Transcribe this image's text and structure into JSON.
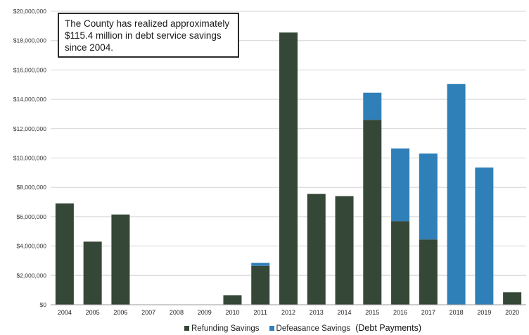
{
  "chart_data": {
    "type": "bar",
    "stacked": true,
    "categories": [
      "2004",
      "2005",
      "2006",
      "2007",
      "2008",
      "2009",
      "2010",
      "2011",
      "2012",
      "2013",
      "2014",
      "2015",
      "2016",
      "2017",
      "2018",
      "2019",
      "2020"
    ],
    "series": [
      {
        "name": "Refunding Savings",
        "color": "#354737",
        "values": [
          6900000,
          4300000,
          6150000,
          0,
          0,
          0,
          650000,
          2650000,
          18550000,
          7550000,
          7400000,
          12600000,
          5700000,
          4450000,
          0,
          0,
          850000
        ]
      },
      {
        "name": "Defeasance Savings",
        "color": "#2f7fb8",
        "values": [
          0,
          0,
          0,
          0,
          0,
          0,
          0,
          200000,
          0,
          0,
          0,
          1850000,
          4950000,
          5850000,
          15050000,
          9350000,
          0
        ]
      }
    ],
    "ylim": [
      0,
      20000000
    ],
    "yticks": [
      0,
      2000000,
      4000000,
      6000000,
      8000000,
      10000000,
      12000000,
      14000000,
      16000000,
      18000000,
      20000000
    ],
    "ytick_labels": [
      "$0",
      "$2,000,000",
      "$4,000,000",
      "$6,000,000",
      "$8,000,000",
      "$10,000,000",
      "$12,000,000",
      "$14,000,000",
      "$16,000,000",
      "$18,000,000",
      "$20,000,000"
    ],
    "grid": true,
    "legend_placement": "bottom",
    "annotation": {
      "lines": [
        "The County has realized approximately",
        "$115.4 million in debt service savings",
        "since 2004."
      ]
    }
  },
  "legend": {
    "refunding_label": "Refunding Savings",
    "defeasance_label": "Defeasance Savings",
    "note": "(Debt Payments)"
  }
}
